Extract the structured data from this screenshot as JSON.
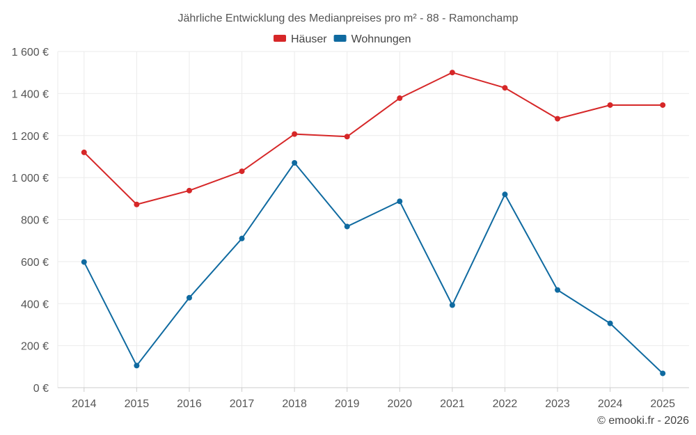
{
  "chart_data": {
    "type": "line",
    "title": "Jährliche Entwicklung des Medianpreises pro m² - 88 - Ramonchamp",
    "categories": [
      "2014",
      "2015",
      "2016",
      "2017",
      "2018",
      "2019",
      "2020",
      "2021",
      "2022",
      "2023",
      "2024",
      "2025"
    ],
    "series": [
      {
        "name": "Häuser",
        "color": "#d62728",
        "values": [
          1120,
          872,
          938,
          1030,
          1207,
          1195,
          1378,
          1500,
          1427,
          1280,
          1345,
          1345
        ]
      },
      {
        "name": "Wohnungen",
        "color": "#0f6aa0",
        "values": [
          598,
          105,
          428,
          710,
          1070,
          767,
          887,
          393,
          920,
          465,
          306,
          68
        ]
      }
    ],
    "ylim": [
      0,
      1600
    ],
    "yticks": [
      0,
      200,
      400,
      600,
      800,
      1000,
      1200,
      1400,
      1600
    ],
    "ytick_labels": [
      "0 €",
      "200 €",
      "400 €",
      "600 €",
      "800 €",
      "1 000 €",
      "1 200 €",
      "1 400 €",
      "1 600 €"
    ],
    "xlabel": "",
    "ylabel": "",
    "grid": true,
    "legend": "top-center"
  },
  "credit": "© emooki.fr - 2026"
}
